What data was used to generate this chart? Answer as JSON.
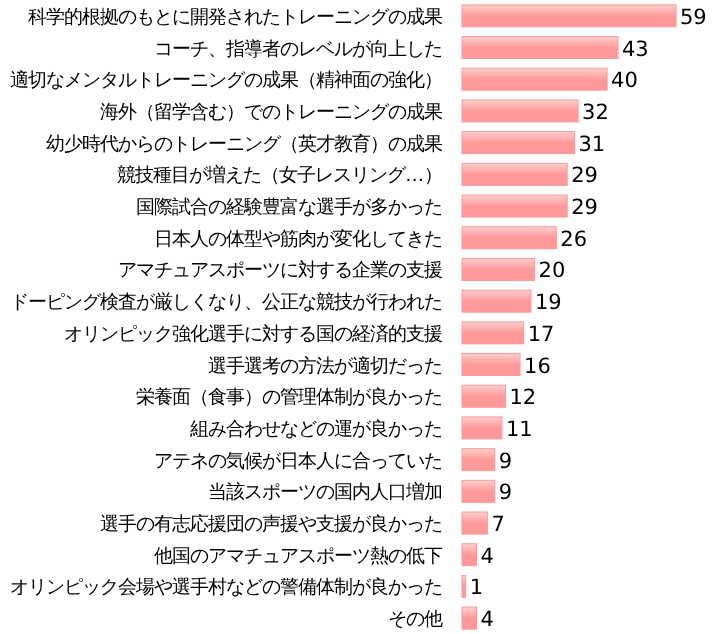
{
  "chart_data": {
    "type": "bar",
    "orientation": "horizontal",
    "data_labels": true,
    "color": "#ff9999",
    "categories": [
      "科学的根拠のもとに開発されたトレーニングの成果",
      "コーチ、指導者のレベルが向上した",
      "適切なメンタルトレーニングの成果（精神面の強化）",
      "海外（留学含む）でのトレーニングの成果",
      "幼少時代からのトレーニング（英才教育）の成果",
      "競技種目が増えた（女子レスリング…）",
      "国際試合の経験豊富な選手が多かった",
      "日本人の体型や筋肉が変化してきた",
      "アマチュアスポーツに対する企業の支援",
      "ドーピング検査が厳しくなり、公正な競技が行われた",
      "オリンピック強化選手に対する国の経済的支援",
      "選手選考の方法が適切だった",
      "栄養面（食事）の管理体制が良かった",
      "組み合わせなどの運が良かった",
      "アテネの気候が日本人に合っていた",
      "当該スポーツの国内人口増加",
      "選手の有志応援団の声援や支援が良かった",
      "他国のアマチュアスポーツ熱の低下",
      "オリンピック会場や選手村などの警備体制が良かった",
      "その他"
    ],
    "values": [
      59,
      43,
      40,
      32,
      31,
      29,
      29,
      26,
      20,
      19,
      17,
      16,
      12,
      11,
      9,
      9,
      7,
      4,
      1,
      4
    ]
  }
}
